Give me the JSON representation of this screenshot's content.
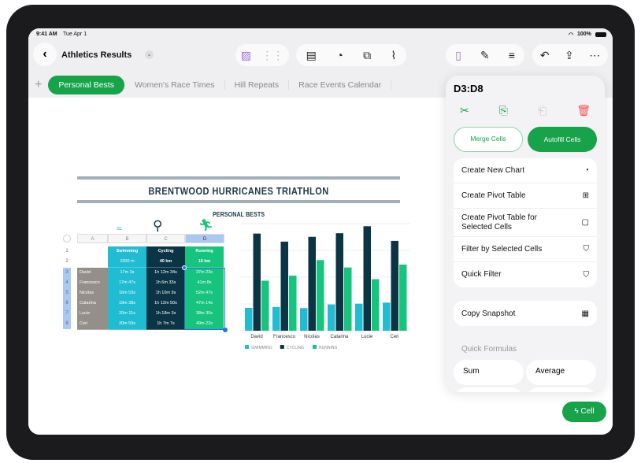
{
  "status": {
    "time": "9:41 AM",
    "date": "Tue Apr 1",
    "battery": "100%"
  },
  "header": {
    "title": "Athletics Results",
    "toolbar_icons": [
      "media-sparkle-icon",
      "grid-icon",
      "table-icon",
      "chart-icon",
      "shapes-icon",
      "paperclip-icon",
      "format-icon",
      "paintbrush-icon",
      "sort-icon",
      "undo-icon",
      "share-icon",
      "more-icon"
    ]
  },
  "tabs": [
    {
      "label": "Personal Bests",
      "active": true
    },
    {
      "label": "Women's Race Times"
    },
    {
      "label": "Hill Repeats"
    },
    {
      "label": "Race Events Calendar"
    }
  ],
  "sheet": {
    "title": "BRENTWOOD HURRICANES TRIATHLON",
    "subtitle": "PERSONAL BESTS",
    "columns": [
      "A",
      "B",
      "C",
      "D"
    ],
    "rows": [
      "1",
      "2",
      "3",
      "4",
      "5",
      "6",
      "7",
      "8"
    ],
    "headers": [
      "Swimming",
      "Cycling",
      "Running"
    ],
    "distances": [
      "1500 m",
      "40 km",
      "10 km"
    ],
    "athletes": [
      {
        "name": "David",
        "swim": "17m 3s",
        "cycle": "1h 12m 34s",
        "run": "37m 23s"
      },
      {
        "name": "Francesco",
        "swim": "17m 47s",
        "cycle": "1h 6m 33s",
        "run": "41m 8s"
      },
      {
        "name": "Nicolas",
        "swim": "16m 53s",
        "cycle": "1h 10m 9s",
        "run": "52m 47s"
      },
      {
        "name": "Catarina",
        "swim": "19m 38s",
        "cycle": "1h 12m 50s",
        "run": "47m 14s"
      },
      {
        "name": "Lucie",
        "swim": "20m 11s",
        "cycle": "1h 18m 3s",
        "run": "38m 30s"
      },
      {
        "name": "Ceri",
        "swim": "20m 59s",
        "cycle": "1h 7m 7s",
        "run": "49m 22s"
      }
    ],
    "colors": {
      "swim": "#1fbcd2",
      "cycle": "#0b3445",
      "run": "#16c47e",
      "name": "#958f8a",
      "selection": "#2f6fe0"
    }
  },
  "chart_data": {
    "type": "bar",
    "categories": [
      "David",
      "Francesco",
      "Nicolas",
      "Catarina",
      "Lucie",
      "Ceri"
    ],
    "series": [
      {
        "name": "SWIMMING",
        "color": "#1fbcd2",
        "values": [
          17.05,
          17.78,
          16.88,
          19.63,
          20.18,
          20.98
        ]
      },
      {
        "name": "CYCLING",
        "color": "#0b3445",
        "values": [
          72.57,
          66.55,
          70.15,
          72.83,
          78.05,
          67.12
        ]
      },
      {
        "name": "RUNNING",
        "color": "#16c47e",
        "values": [
          37.38,
          41.13,
          52.78,
          47.23,
          38.5,
          49.37
        ]
      }
    ],
    "ylim": [
      0,
      80
    ],
    "grid": true,
    "legend": "bottom"
  },
  "panel": {
    "range": "D3:D8",
    "actions": [
      "cut-icon",
      "copy-icon",
      "paste-icon",
      "delete-icon"
    ],
    "merge": "Merge Cells",
    "autofill": "Autofill Cells",
    "menu": [
      {
        "label": "Create New Chart",
        "icon": "◔"
      },
      {
        "label": "Create Pivot Table",
        "icon": "⊞"
      },
      {
        "label": "Create Pivot Table for Selected Cells",
        "icon": "▢"
      },
      {
        "label": "Filter by Selected Cells",
        "icon": "⛉"
      },
      {
        "label": "Quick Filter",
        "icon": "⛉"
      }
    ],
    "snapshot": "Copy Snapshot",
    "quick_formulas": "Quick Formulas",
    "formulas": [
      "Sum",
      "Average"
    ]
  },
  "cell_button": "Cell"
}
